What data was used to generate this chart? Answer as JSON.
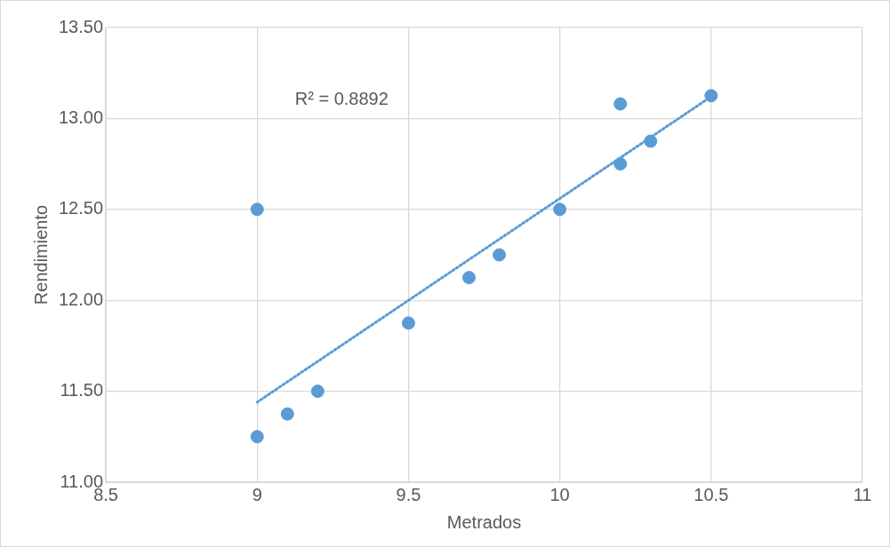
{
  "chart_data": {
    "type": "scatter",
    "xlabel": "Metrados",
    "ylabel": "Rendimiento",
    "annotations": [
      "R² = 0.8892"
    ],
    "xlim": [
      8.5,
      11
    ],
    "xticks": [
      8.5,
      9,
      9.5,
      10,
      10.5,
      11
    ],
    "ylim": [
      11,
      13.5
    ],
    "yticks": [
      {
        "value": 11,
        "label": "11.00"
      },
      {
        "value": 11.5,
        "label": "11.50"
      },
      {
        "value": 12,
        "label": "12.00"
      },
      {
        "value": 12.5,
        "label": "12.50"
      },
      {
        "value": 13,
        "label": "13.00"
      },
      {
        "value": 13.5,
        "label": "13.50"
      }
    ],
    "grid": true,
    "legend": false,
    "marker": "circle",
    "series": [
      {
        "color": "#5b9bd5",
        "x": [
          9,
          9,
          9.1,
          9.2,
          9.5,
          9.7,
          9.8,
          10,
          10.2,
          10.2,
          10.3,
          10.5
        ],
        "values": [
          12.5,
          11.25,
          11.375,
          11.5,
          11.875,
          12.125,
          12.25,
          12.5,
          12.75,
          13.08,
          12.875,
          13.125
        ]
      },
      {
        "type": "line",
        "color": "#5b9bd5",
        "line_style": "dotted",
        "marker": "none",
        "x": [
          9,
          10.5
        ],
        "values": [
          11.44,
          13.12
        ]
      }
    ]
  }
}
